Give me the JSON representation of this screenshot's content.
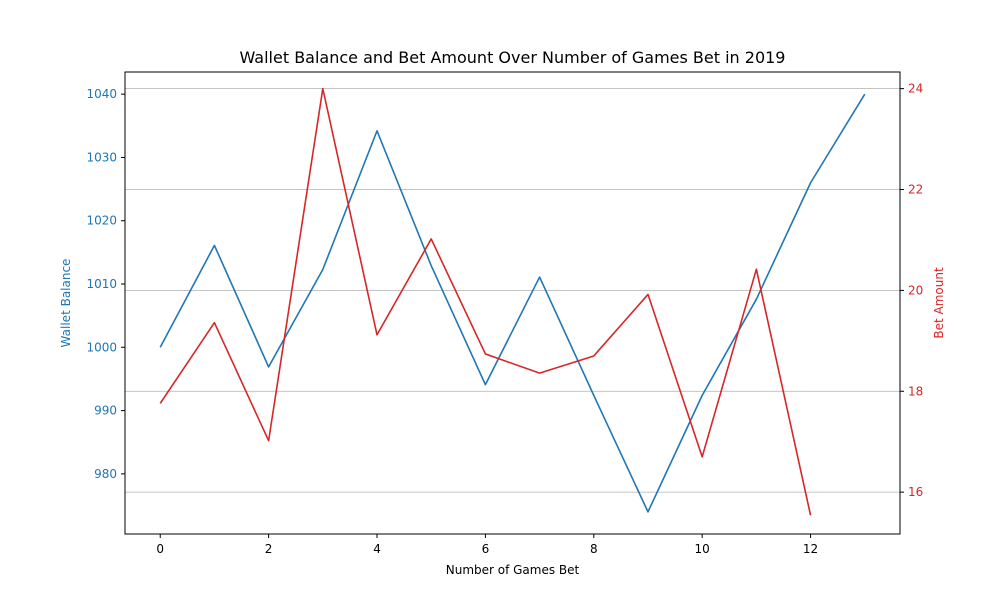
{
  "chart_data": {
    "type": "line",
    "title": "Wallet Balance and Bet Amount Over Number of Games Bet in 2019",
    "xlabel": "Number of Games Bet",
    "ylabel_left": "Wallet Balance",
    "ylabel_right": "Bet Amount",
    "xlim": [
      -0.65,
      13.65
    ],
    "ylim_left": [
      970.5,
      1043.5
    ],
    "ylim_right": [
      15.17,
      24.33
    ],
    "x_ticks": [
      0,
      2,
      4,
      6,
      8,
      10,
      12
    ],
    "y_left_ticks": [
      980,
      990,
      1000,
      1010,
      1020,
      1030,
      1040
    ],
    "y_right_ticks": [
      16,
      18,
      20,
      22,
      24
    ],
    "grid": "right-axis horizontal gridlines",
    "colors": {
      "left": "#1f77b4",
      "right": "#d62728"
    },
    "series": [
      {
        "name": "Wallet Balance",
        "axis": "left",
        "x": [
          0,
          1,
          2,
          3,
          4,
          5,
          6,
          7,
          8,
          9,
          10,
          11,
          12,
          13
        ],
        "values": [
          1000,
          1016.1,
          996.9,
          1012.3,
          1034.2,
          1012.9,
          994.1,
          1011.1,
          992.4,
          974.0,
          992.4,
          1007.6,
          1026.0,
          1040.0
        ]
      },
      {
        "name": "Bet Amount",
        "axis": "right",
        "x": [
          0,
          1,
          2,
          3,
          4,
          5,
          6,
          7,
          8,
          9,
          10,
          11,
          12
        ],
        "values": [
          17.76,
          19.36,
          17.02,
          24.0,
          19.12,
          21.02,
          18.74,
          18.36,
          18.7,
          19.92,
          16.7,
          20.42,
          15.54
        ]
      }
    ]
  }
}
